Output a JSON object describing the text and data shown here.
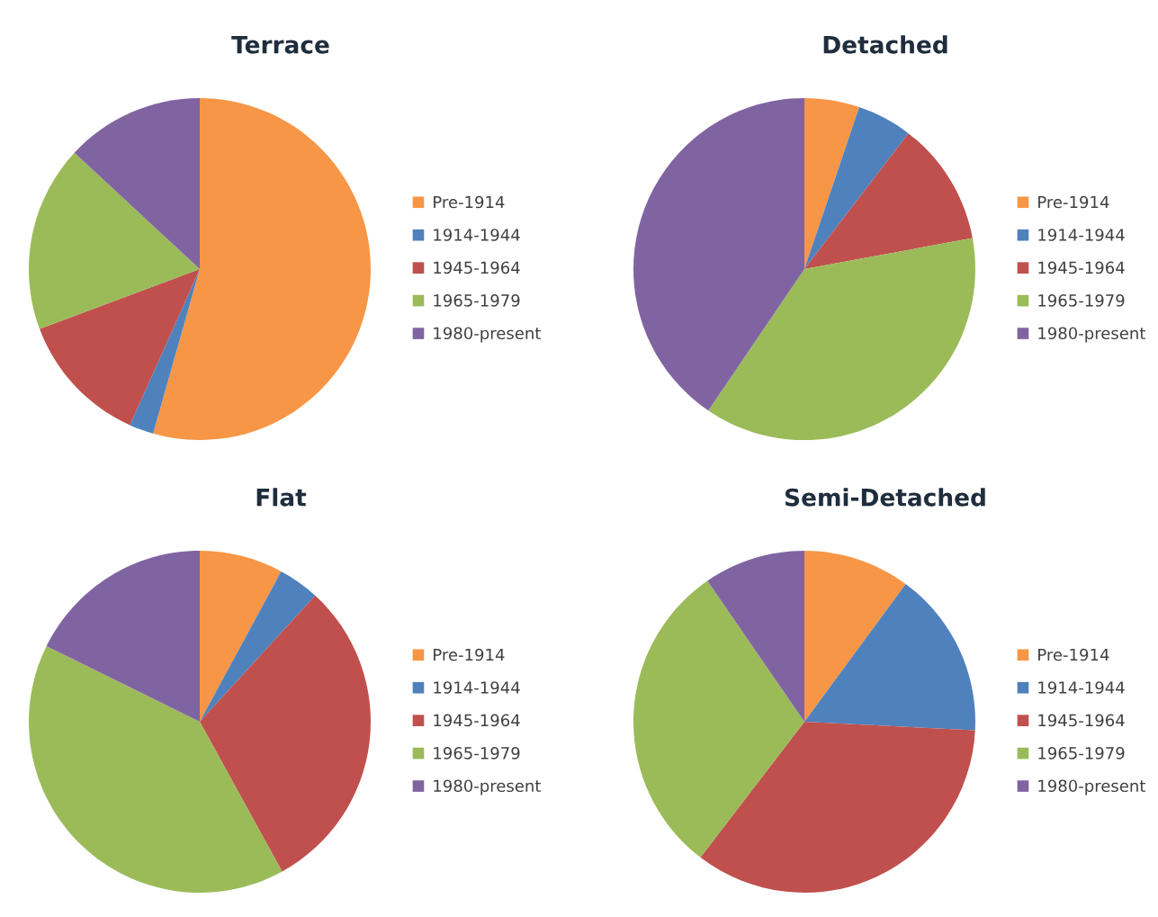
{
  "chart_data": [
    {
      "type": "pie",
      "title": "Terrace",
      "categories": [
        "Pre-1914",
        "1914-1944",
        "1945-1964",
        "1965-1979",
        "1980-present"
      ],
      "values": [
        54.4,
        2.3,
        12.6,
        17.6,
        13.1
      ],
      "colors": [
        "#f79646",
        "#4f81bd",
        "#c0504d",
        "#9bbb59",
        "#8064a2"
      ],
      "legend": "right"
    },
    {
      "type": "pie",
      "title": "Detached",
      "categories": [
        "Pre-1914",
        "1914-1944",
        "1945-1964",
        "1965-1979",
        "1980-present"
      ],
      "values": [
        5.2,
        5.2,
        11.7,
        37.4,
        40.5
      ],
      "colors": [
        "#f79646",
        "#4f81bd",
        "#c0504d",
        "#9bbb59",
        "#8064a2"
      ],
      "legend": "right"
    },
    {
      "type": "pie",
      "title": "Flat",
      "categories": [
        "Pre-1914",
        "1914-1944",
        "1945-1964",
        "1965-1979",
        "1980-present"
      ],
      "values": [
        7.9,
        3.9,
        30.2,
        40.3,
        17.7
      ],
      "colors": [
        "#f79646",
        "#4f81bd",
        "#c0504d",
        "#9bbb59",
        "#8064a2"
      ],
      "legend": "right"
    },
    {
      "type": "pie",
      "title": "Semi-Detached",
      "categories": [
        "Pre-1914",
        "1914-1944",
        "1945-1964",
        "1965-1979",
        "1980-present"
      ],
      "values": [
        10.1,
        15.7,
        34.6,
        30.0,
        9.6
      ],
      "colors": [
        "#f79646",
        "#4f81bd",
        "#c0504d",
        "#9bbb59",
        "#8064a2"
      ],
      "legend": "right"
    }
  ]
}
